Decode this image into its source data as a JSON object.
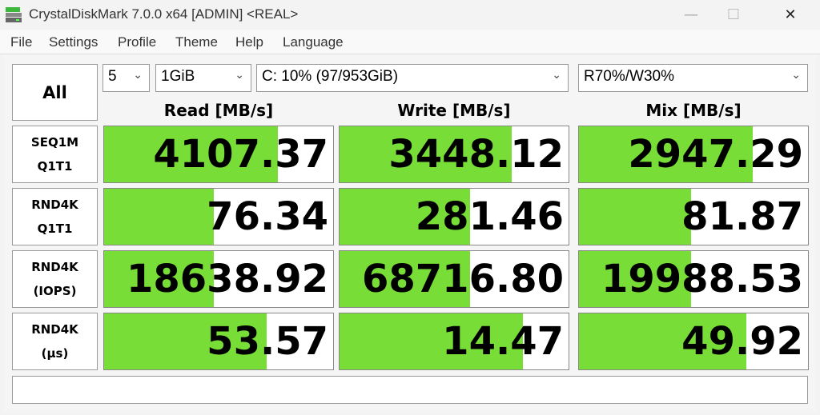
{
  "window": {
    "title": "CrystalDiskMark 7.0.0 x64 [ADMIN] <REAL>",
    "minimize": "—",
    "maximize": "☐",
    "close": "✕"
  },
  "menu": [
    "File",
    "Settings",
    "Profile",
    "Theme",
    "Help",
    "Language"
  ],
  "controls": {
    "all_button": "All",
    "count": "5",
    "size": "1GiB",
    "drive": "C: 10% (97/953GiB)",
    "mix": "R70%/W30%"
  },
  "headers": [
    "Read [MB/s]",
    "Write [MB/s]",
    "Mix [MB/s]"
  ],
  "rows": [
    {
      "label1": "SEQ1M",
      "label2": "Q1T1",
      "values": [
        "4107.37",
        "3448.12",
        "2947.29"
      ],
      "fill": [
        0.76,
        0.75,
        0.76
      ]
    },
    {
      "label1": "RND4K",
      "label2": "Q1T1",
      "values": [
        "76.34",
        "281.46",
        "81.87"
      ],
      "fill": [
        0.48,
        0.57,
        0.49
      ]
    },
    {
      "label1": "RND4K",
      "label2": "(IOPS)",
      "values": [
        "18638.92",
        "68716.80",
        "19988.53"
      ],
      "fill": [
        0.48,
        0.57,
        0.49
      ]
    },
    {
      "label1": "RND4K",
      "label2": "(µs)",
      "values": [
        "53.57",
        "14.47",
        "49.92"
      ],
      "fill": [
        0.71,
        0.8,
        0.73
      ]
    }
  ],
  "status": "",
  "colors": {
    "bar": "#78dd36"
  }
}
